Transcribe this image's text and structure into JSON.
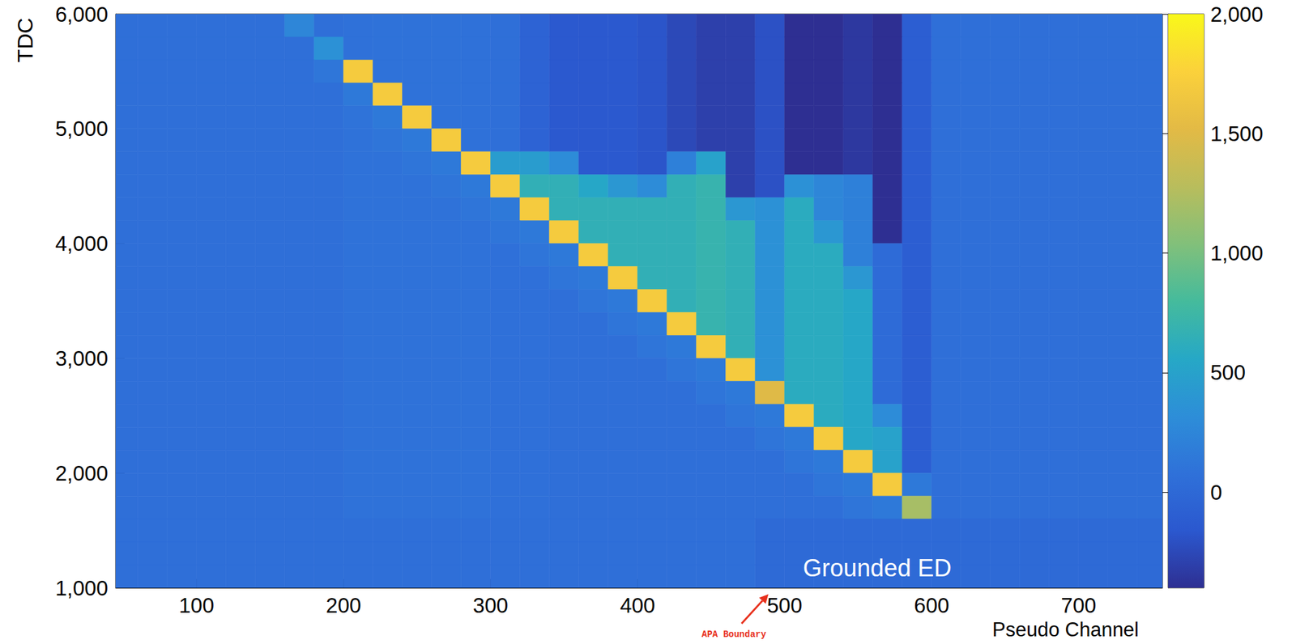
{
  "chart_data": {
    "type": "heatmap",
    "x_label": "Pseudo Channel",
    "y_label": "TDC",
    "xlim": [
      45,
      757
    ],
    "ylim": [
      1000,
      6000
    ],
    "xticks": [
      100,
      200,
      300,
      400,
      500,
      600,
      700
    ],
    "yticks": [
      1000,
      2000,
      3000,
      4000,
      5000,
      6000
    ],
    "grid": false,
    "x_edges": [
      40,
      60,
      80,
      100,
      120,
      140,
      160,
      180,
      200,
      220,
      240,
      260,
      280,
      300,
      320,
      340,
      360,
      380,
      400,
      420,
      440,
      460,
      480,
      500,
      520,
      540,
      560,
      580,
      600,
      620,
      640,
      660,
      680,
      700,
      720,
      740,
      760
    ],
    "y_edges": [
      6000,
      5800,
      5600,
      5400,
      5200,
      5000,
      4800,
      4600,
      4400,
      4200,
      4000,
      3800,
      3600,
      3400,
      3200,
      3000,
      2800,
      2600,
      2400,
      2200,
      2000,
      1800,
      1600,
      1400,
      1200,
      1000
    ],
    "cells": [
      [
        60,
        60,
        60,
        60,
        60,
        60,
        250,
        60,
        80,
        90,
        90,
        90,
        80,
        60,
        -50,
        -150,
        -150,
        -150,
        -180,
        -250,
        -300,
        -300,
        -200,
        -500,
        -500,
        -350,
        -450,
        -100,
        60,
        60,
        60,
        60,
        60,
        60,
        60,
        60
      ],
      [
        60,
        60,
        60,
        60,
        60,
        60,
        60,
        350,
        80,
        90,
        90,
        90,
        80,
        60,
        -50,
        -150,
        -150,
        -150,
        -180,
        -250,
        -300,
        -300,
        -200,
        -500,
        -500,
        -350,
        -450,
        -100,
        60,
        60,
        60,
        60,
        60,
        60,
        60,
        60
      ],
      [
        60,
        60,
        60,
        60,
        60,
        60,
        60,
        120,
        1700,
        90,
        90,
        90,
        80,
        60,
        -50,
        -150,
        -150,
        -150,
        -180,
        -250,
        -300,
        -300,
        -200,
        -500,
        -500,
        -350,
        -450,
        -100,
        60,
        60,
        60,
        60,
        60,
        60,
        60,
        60
      ],
      [
        60,
        60,
        60,
        60,
        60,
        60,
        60,
        60,
        150,
        1700,
        90,
        90,
        80,
        60,
        -50,
        -150,
        -150,
        -150,
        -180,
        -250,
        -300,
        -300,
        -200,
        -500,
        -500,
        -350,
        -450,
        -100,
        60,
        60,
        60,
        60,
        60,
        60,
        60,
        60
      ],
      [
        60,
        60,
        60,
        60,
        60,
        60,
        60,
        60,
        100,
        150,
        1700,
        90,
        80,
        60,
        -50,
        -150,
        -150,
        -150,
        -180,
        -250,
        -300,
        -300,
        -200,
        -500,
        -500,
        -350,
        -450,
        -100,
        60,
        60,
        60,
        60,
        60,
        60,
        60,
        60
      ],
      [
        60,
        60,
        60,
        60,
        60,
        60,
        60,
        60,
        90,
        110,
        150,
        1700,
        80,
        60,
        -50,
        -150,
        -150,
        -150,
        -180,
        -250,
        -300,
        -300,
        -200,
        -500,
        -500,
        -350,
        -450,
        -100,
        60,
        60,
        60,
        60,
        60,
        60,
        60,
        60
      ],
      [
        60,
        60,
        60,
        60,
        60,
        60,
        60,
        60,
        90,
        90,
        110,
        150,
        1700,
        450,
        450,
        300,
        -150,
        -150,
        -180,
        200,
        500,
        -300,
        -200,
        -500,
        -500,
        -350,
        -450,
        -100,
        60,
        60,
        60,
        60,
        60,
        60,
        60,
        60
      ],
      [
        60,
        60,
        60,
        60,
        60,
        60,
        60,
        60,
        90,
        90,
        90,
        110,
        150,
        1700,
        650,
        650,
        550,
        400,
        300,
        650,
        700,
        -300,
        -200,
        350,
        250,
        200,
        -450,
        -100,
        60,
        60,
        60,
        60,
        60,
        60,
        60,
        60
      ],
      [
        60,
        60,
        60,
        60,
        60,
        60,
        60,
        60,
        90,
        90,
        90,
        90,
        110,
        150,
        1700,
        650,
        650,
        650,
        650,
        650,
        700,
        400,
        350,
        600,
        250,
        200,
        -450,
        -100,
        60,
        60,
        60,
        60,
        60,
        60,
        60,
        60
      ],
      [
        60,
        60,
        60,
        60,
        60,
        60,
        60,
        60,
        90,
        90,
        90,
        90,
        90,
        110,
        150,
        1700,
        650,
        650,
        650,
        650,
        700,
        650,
        350,
        600,
        400,
        200,
        -450,
        -100,
        60,
        60,
        60,
        60,
        60,
        60,
        60,
        60
      ],
      [
        60,
        60,
        60,
        60,
        60,
        60,
        60,
        60,
        90,
        90,
        90,
        90,
        90,
        70,
        110,
        150,
        1700,
        650,
        650,
        650,
        700,
        650,
        350,
        600,
        600,
        200,
        20,
        -100,
        60,
        60,
        60,
        60,
        60,
        60,
        60,
        60
      ],
      [
        60,
        60,
        60,
        60,
        60,
        60,
        60,
        60,
        90,
        90,
        90,
        90,
        90,
        70,
        70,
        110,
        150,
        1700,
        650,
        650,
        700,
        650,
        350,
        600,
        600,
        400,
        20,
        -100,
        60,
        60,
        60,
        60,
        60,
        60,
        60,
        60
      ],
      [
        60,
        60,
        60,
        60,
        60,
        60,
        60,
        60,
        90,
        90,
        90,
        90,
        90,
        70,
        70,
        60,
        110,
        150,
        1700,
        650,
        700,
        650,
        350,
        600,
        600,
        550,
        20,
        -100,
        60,
        60,
        60,
        60,
        60,
        60,
        60,
        60
      ],
      [
        60,
        60,
        60,
        60,
        60,
        60,
        60,
        60,
        90,
        90,
        90,
        90,
        90,
        70,
        70,
        60,
        60,
        110,
        150,
        1700,
        700,
        650,
        350,
        600,
        600,
        550,
        20,
        -100,
        60,
        60,
        60,
        60,
        60,
        60,
        60,
        60
      ],
      [
        60,
        60,
        60,
        60,
        60,
        60,
        60,
        60,
        90,
        90,
        90,
        90,
        90,
        70,
        70,
        60,
        60,
        60,
        110,
        150,
        1700,
        650,
        350,
        600,
        600,
        550,
        20,
        -100,
        60,
        60,
        60,
        60,
        60,
        60,
        60,
        60
      ],
      [
        60,
        60,
        60,
        60,
        60,
        60,
        60,
        60,
        90,
        90,
        90,
        90,
        90,
        70,
        70,
        60,
        60,
        60,
        60,
        110,
        150,
        1700,
        350,
        600,
        600,
        550,
        20,
        -100,
        60,
        60,
        60,
        60,
        60,
        60,
        60,
        60
      ],
      [
        60,
        60,
        60,
        60,
        60,
        60,
        60,
        60,
        90,
        90,
        90,
        90,
        90,
        70,
        70,
        60,
        60,
        60,
        60,
        60,
        110,
        150,
        1500,
        600,
        600,
        550,
        20,
        -100,
        60,
        60,
        60,
        60,
        60,
        60,
        60,
        60
      ],
      [
        60,
        60,
        60,
        60,
        60,
        60,
        60,
        60,
        90,
        90,
        90,
        90,
        90,
        70,
        70,
        60,
        60,
        60,
        60,
        60,
        60,
        110,
        150,
        1700,
        600,
        550,
        300,
        -100,
        60,
        60,
        60,
        60,
        60,
        60,
        60,
        60
      ],
      [
        60,
        60,
        60,
        60,
        60,
        60,
        60,
        60,
        90,
        90,
        90,
        90,
        90,
        70,
        70,
        60,
        60,
        60,
        60,
        60,
        60,
        60,
        110,
        150,
        1700,
        550,
        500,
        -100,
        60,
        60,
        60,
        60,
        60,
        60,
        60,
        60
      ],
      [
        60,
        60,
        60,
        60,
        60,
        60,
        60,
        60,
        90,
        90,
        90,
        90,
        90,
        70,
        70,
        60,
        60,
        60,
        60,
        60,
        60,
        60,
        60,
        110,
        150,
        1700,
        500,
        -100,
        60,
        60,
        60,
        60,
        60,
        60,
        60,
        60
      ],
      [
        60,
        60,
        60,
        60,
        60,
        60,
        60,
        60,
        90,
        90,
        90,
        90,
        90,
        70,
        70,
        60,
        60,
        60,
        60,
        60,
        60,
        60,
        60,
        60,
        110,
        150,
        1700,
        150,
        60,
        60,
        60,
        60,
        60,
        60,
        60,
        60
      ],
      [
        60,
        60,
        60,
        60,
        60,
        60,
        60,
        60,
        90,
        90,
        90,
        90,
        90,
        70,
        70,
        60,
        60,
        60,
        60,
        60,
        60,
        60,
        60,
        60,
        60,
        110,
        150,
        1200,
        60,
        60,
        60,
        60,
        60,
        60,
        60,
        60
      ],
      [
        60,
        60,
        60,
        60,
        60,
        60,
        60,
        60,
        60,
        60,
        60,
        60,
        60,
        60,
        60,
        60,
        60,
        60,
        60,
        60,
        60,
        60,
        10,
        10,
        10,
        10,
        10,
        10,
        10,
        10,
        10,
        10,
        10,
        10,
        10,
        10
      ],
      [
        60,
        60,
        60,
        60,
        60,
        60,
        60,
        60,
        60,
        60,
        60,
        60,
        60,
        60,
        60,
        60,
        60,
        60,
        60,
        60,
        60,
        60,
        10,
        10,
        10,
        10,
        10,
        10,
        10,
        10,
        10,
        10,
        10,
        10,
        10,
        10
      ],
      [
        60,
        60,
        60,
        60,
        60,
        60,
        60,
        60,
        60,
        60,
        60,
        60,
        60,
        60,
        60,
        60,
        60,
        60,
        60,
        60,
        60,
        60,
        10,
        10,
        10,
        10,
        10,
        10,
        10,
        10,
        10,
        10,
        10,
        10,
        10,
        10
      ]
    ],
    "colorbar_range": [
      -400,
      2000
    ],
    "colorbar_ticks": [
      0,
      500,
      1000,
      1500,
      2000
    ],
    "annotations": [
      {
        "text": "Grounded ED",
        "x": 563,
        "y": 1170
      },
      {
        "text": "APA Boundary",
        "x": 489
      }
    ]
  }
}
